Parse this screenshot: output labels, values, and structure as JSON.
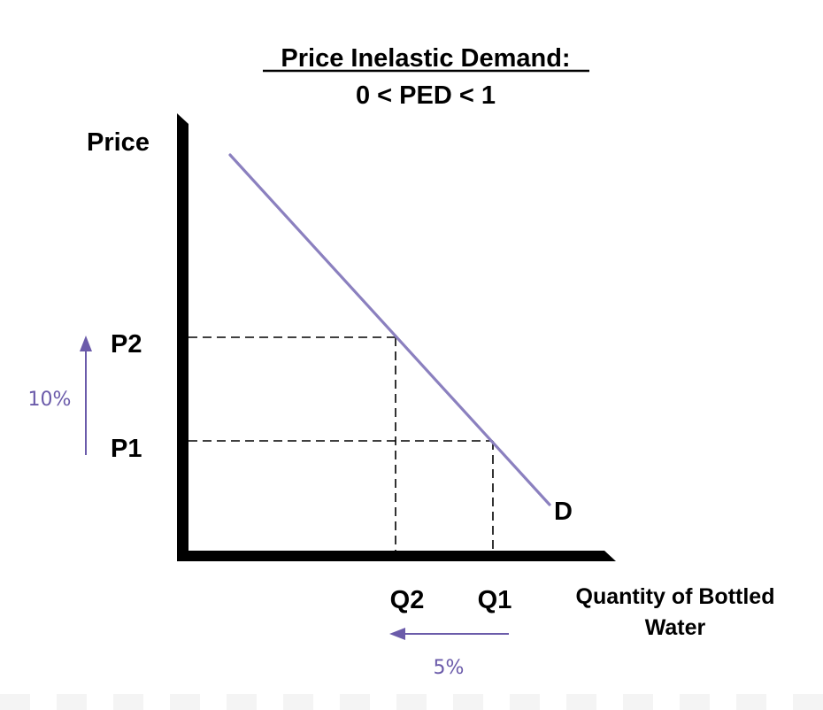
{
  "title": {
    "line1": "Price Inelastic Demand:",
    "line2": "0 < PED < 1"
  },
  "axes": {
    "y_label": "Price",
    "x_label_line1": "Quantity of Bottled",
    "x_label_line2": "Water"
  },
  "curve": {
    "label": "D"
  },
  "points": {
    "p1": "P1",
    "p2": "P2",
    "q1": "Q1",
    "q2": "Q2"
  },
  "changes": {
    "price_change": "10%",
    "quantity_change": "5%",
    "price_direction": "up",
    "quantity_direction": "left"
  },
  "colors": {
    "curve": "#8B80BF",
    "arrow": "#6B5BAA",
    "percent_text": "#6B5BAA",
    "axes": "#000000",
    "guide_lines": "#000000",
    "footer_stripe": "#F4F4F4"
  }
}
